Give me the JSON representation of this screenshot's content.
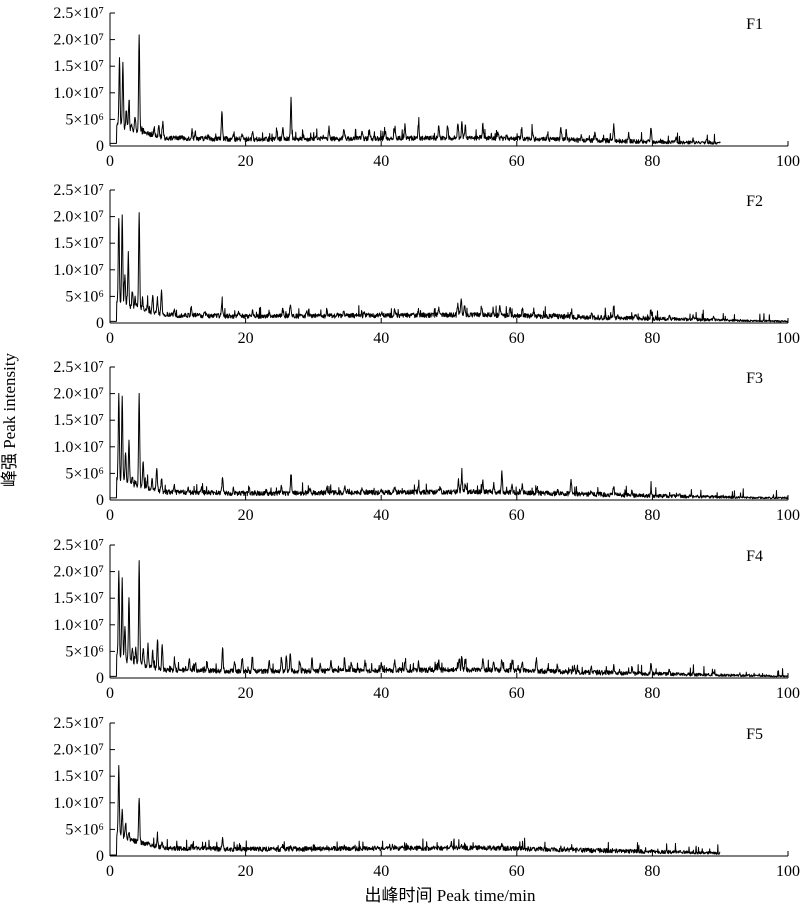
{
  "chart_data": {
    "type": "line",
    "xlabel": "出峰时间 Peak time/min",
    "ylabel": "峰强 Peak intensity",
    "xlim": [
      0,
      100
    ],
    "ylim": [
      0,
      25000000
    ],
    "x_ticks": [
      0,
      20,
      40,
      60,
      80,
      100
    ],
    "y_ticks": [
      {
        "value": 0,
        "label": "0"
      },
      {
        "value": 5000000,
        "label": "5×10⁶"
      },
      {
        "value": 10000000,
        "label": "1.0×10⁷"
      },
      {
        "value": 15000000,
        "label": "1.5×10⁷"
      },
      {
        "value": 20000000,
        "label": "2.0×10⁷"
      },
      {
        "value": 25000000,
        "label": "2.5×10⁷"
      }
    ],
    "panels": [
      {
        "name": "F1",
        "end": 90,
        "tail": 0.5,
        "peaks": [
          [
            1.4,
            16.5
          ],
          [
            1.9,
            15.8
          ],
          [
            2.4,
            7.0
          ],
          [
            2.8,
            8.5
          ],
          [
            3.2,
            4.0
          ],
          [
            3.7,
            5.5
          ],
          [
            4.3,
            21.0
          ],
          [
            4.9,
            3.0
          ],
          [
            5.6,
            2.5
          ],
          [
            6.5,
            3.6
          ],
          [
            7.2,
            4.3
          ],
          [
            7.8,
            4.6
          ],
          [
            9.5,
            1.8
          ],
          [
            10.5,
            1.8
          ],
          [
            12.1,
            3.1
          ],
          [
            12.6,
            2.6
          ],
          [
            14.5,
            1.9
          ],
          [
            16.5,
            6.7
          ],
          [
            18.2,
            2.0
          ],
          [
            19.5,
            2.2
          ],
          [
            21.0,
            2.6
          ],
          [
            23.0,
            2.0
          ],
          [
            24.6,
            2.8
          ],
          [
            25.5,
            3.6
          ],
          [
            26.7,
            9.0
          ],
          [
            28.5,
            2.0
          ],
          [
            30.5,
            1.8
          ],
          [
            32.3,
            3.7
          ],
          [
            34.5,
            3.2
          ],
          [
            37.2,
            2.8
          ],
          [
            38.3,
            2.6
          ],
          [
            40.6,
            2.8
          ],
          [
            42.0,
            3.4
          ],
          [
            43.5,
            3.8
          ],
          [
            45.5,
            4.2
          ],
          [
            48.5,
            3.8
          ],
          [
            49.8,
            4.0
          ],
          [
            51.3,
            4.0
          ],
          [
            51.9,
            4.4
          ],
          [
            52.4,
            3.8
          ],
          [
            55.0,
            4.2
          ],
          [
            57.2,
            2.6
          ],
          [
            58.5,
            2.1
          ],
          [
            60.7,
            3.5
          ],
          [
            62.3,
            2.8
          ],
          [
            64.5,
            2.2
          ],
          [
            66.5,
            3.3
          ],
          [
            67.3,
            3.0
          ],
          [
            69.5,
            2.2
          ],
          [
            71.5,
            2.4
          ],
          [
            74.3,
            3.9
          ],
          [
            76.5,
            2.1
          ],
          [
            79.8,
            3.6
          ],
          [
            83.5,
            1.6
          ],
          [
            86.0,
            1.3
          ],
          [
            88.0,
            1.1
          ]
        ]
      },
      {
        "name": "F2",
        "end": 100,
        "tail": 0.3,
        "peaks": [
          [
            1.3,
            20.0
          ],
          [
            1.8,
            20.2
          ],
          [
            2.2,
            9.0
          ],
          [
            2.7,
            13.0
          ],
          [
            3.3,
            6.0
          ],
          [
            3.7,
            5.0
          ],
          [
            4.3,
            20.6
          ],
          [
            4.8,
            4.5
          ],
          [
            5.5,
            3.5
          ],
          [
            6.3,
            5.0
          ],
          [
            7.0,
            4.5
          ],
          [
            7.6,
            5.8
          ],
          [
            9.5,
            2.5
          ],
          [
            12.0,
            3.0
          ],
          [
            14.0,
            2.0
          ],
          [
            16.5,
            4.1
          ],
          [
            19.0,
            2.0
          ],
          [
            21.0,
            2.2
          ],
          [
            23.5,
            2.2
          ],
          [
            25.5,
            2.6
          ],
          [
            26.6,
            3.6
          ],
          [
            29.0,
            2.0
          ],
          [
            32.0,
            2.6
          ],
          [
            34.5,
            2.4
          ],
          [
            37.5,
            2.3
          ],
          [
            40.0,
            2.0
          ],
          [
            42.0,
            2.6
          ],
          [
            45.5,
            2.4
          ],
          [
            48.5,
            2.6
          ],
          [
            51.3,
            3.6
          ],
          [
            51.8,
            4.4
          ],
          [
            52.3,
            3.4
          ],
          [
            54.8,
            3.1
          ],
          [
            56.5,
            2.6
          ],
          [
            57.5,
            3.0
          ],
          [
            59.0,
            2.8
          ],
          [
            60.8,
            2.7
          ],
          [
            62.5,
            2.4
          ],
          [
            65.5,
            1.8
          ],
          [
            68.0,
            1.7
          ],
          [
            71.0,
            1.8
          ],
          [
            74.3,
            3.2
          ],
          [
            77.5,
            1.7
          ],
          [
            79.8,
            2.2
          ],
          [
            82.5,
            1.6
          ],
          [
            86.0,
            1.4
          ],
          [
            89.0,
            1.2
          ]
        ]
      },
      {
        "name": "F3",
        "end": 100,
        "tail": 0.4,
        "peaks": [
          [
            1.3,
            20.0
          ],
          [
            1.8,
            19.7
          ],
          [
            2.3,
            9.0
          ],
          [
            2.8,
            11.2
          ],
          [
            3.3,
            4.5
          ],
          [
            3.8,
            3.5
          ],
          [
            4.3,
            19.8
          ],
          [
            4.9,
            7.5
          ],
          [
            5.5,
            3.5
          ],
          [
            6.2,
            4.0
          ],
          [
            6.9,
            6.2
          ],
          [
            7.6,
            4.0
          ],
          [
            9.5,
            2.5
          ],
          [
            11.5,
            2.5
          ],
          [
            13.5,
            2.2
          ],
          [
            16.6,
            4.6
          ],
          [
            18.2,
            2.0
          ],
          [
            20.5,
            2.5
          ],
          [
            23.0,
            2.0
          ],
          [
            25.3,
            2.6
          ],
          [
            26.7,
            5.0
          ],
          [
            29.5,
            2.2
          ],
          [
            32.0,
            2.8
          ],
          [
            34.6,
            2.6
          ],
          [
            37.2,
            2.4
          ],
          [
            40.0,
            2.2
          ],
          [
            42.0,
            2.4
          ],
          [
            45.5,
            2.3
          ],
          [
            48.7,
            2.3
          ],
          [
            51.4,
            3.6
          ],
          [
            51.9,
            4.6
          ],
          [
            52.4,
            3.0
          ],
          [
            55.0,
            3.4
          ],
          [
            56.6,
            3.0
          ],
          [
            57.8,
            5.1
          ],
          [
            59.3,
            2.9
          ],
          [
            60.8,
            2.8
          ],
          [
            63.0,
            2.4
          ],
          [
            66.0,
            2.0
          ],
          [
            68.0,
            3.6
          ],
          [
            71.0,
            1.8
          ],
          [
            74.3,
            2.8
          ],
          [
            77.0,
            1.7
          ],
          [
            79.8,
            2.0
          ],
          [
            84.0,
            1.0
          ],
          [
            88.0,
            0.8
          ]
        ]
      },
      {
        "name": "F4",
        "end": 100,
        "tail": 0.3,
        "peaks": [
          [
            1.3,
            20.0
          ],
          [
            1.8,
            18.0
          ],
          [
            2.2,
            10.0
          ],
          [
            2.8,
            15.5
          ],
          [
            3.3,
            6.0
          ],
          [
            3.8,
            5.5
          ],
          [
            4.3,
            21.5
          ],
          [
            4.9,
            5.6
          ],
          [
            5.6,
            5.8
          ],
          [
            6.3,
            5.0
          ],
          [
            7.0,
            7.5
          ],
          [
            7.7,
            6.5
          ],
          [
            9.5,
            3.0
          ],
          [
            11.7,
            3.8
          ],
          [
            12.6,
            3.0
          ],
          [
            14.3,
            3.0
          ],
          [
            16.6,
            5.8
          ],
          [
            18.4,
            3.2
          ],
          [
            19.5,
            3.8
          ],
          [
            21.0,
            4.0
          ],
          [
            23.5,
            3.0
          ],
          [
            25.3,
            4.0
          ],
          [
            26.0,
            4.0
          ],
          [
            26.6,
            4.6
          ],
          [
            28.0,
            3.0
          ],
          [
            29.8,
            3.6
          ],
          [
            31.0,
            3.0
          ],
          [
            32.6,
            3.2
          ],
          [
            34.6,
            3.8
          ],
          [
            35.6,
            3.0
          ],
          [
            37.6,
            3.0
          ],
          [
            40.0,
            2.6
          ],
          [
            42.0,
            3.3
          ],
          [
            43.5,
            3.0
          ],
          [
            45.5,
            2.8
          ],
          [
            48.5,
            3.0
          ],
          [
            51.5,
            3.6
          ],
          [
            51.9,
            4.3
          ],
          [
            52.4,
            3.5
          ],
          [
            55.0,
            3.4
          ],
          [
            56.6,
            3.0
          ],
          [
            57.8,
            3.6
          ],
          [
            59.3,
            3.0
          ],
          [
            60.8,
            3.0
          ],
          [
            62.9,
            3.8
          ],
          [
            66.0,
            2.4
          ],
          [
            68.5,
            2.2
          ],
          [
            71.0,
            2.0
          ],
          [
            74.3,
            2.2
          ],
          [
            77.0,
            2.0
          ],
          [
            79.8,
            3.0
          ],
          [
            82.5,
            1.6
          ],
          [
            86.0,
            1.2
          ],
          [
            89.0,
            1.0
          ]
        ]
      },
      {
        "name": "F5",
        "end": 90,
        "tail": 0.2,
        "peaks": [
          [
            1.3,
            16.8
          ],
          [
            1.8,
            9.0
          ],
          [
            2.3,
            6.5
          ],
          [
            2.8,
            4.5
          ],
          [
            3.3,
            2.5
          ],
          [
            3.8,
            2.0
          ],
          [
            4.3,
            11.2
          ],
          [
            4.9,
            2.5
          ],
          [
            5.6,
            2.0
          ],
          [
            6.3,
            2.2
          ],
          [
            7.0,
            3.5
          ],
          [
            7.7,
            2.5
          ],
          [
            9.5,
            1.5
          ],
          [
            12.0,
            2.0
          ],
          [
            14.0,
            1.5
          ],
          [
            16.6,
            3.1
          ],
          [
            18.5,
            1.5
          ],
          [
            21.0,
            1.6
          ],
          [
            23.5,
            1.5
          ],
          [
            25.5,
            1.8
          ],
          [
            26.6,
            2.0
          ],
          [
            29.5,
            1.4
          ],
          [
            32.0,
            1.6
          ],
          [
            34.6,
            1.8
          ],
          [
            37.5,
            1.5
          ],
          [
            40.0,
            1.4
          ],
          [
            42.0,
            1.7
          ],
          [
            45.5,
            1.5
          ],
          [
            48.5,
            1.6
          ],
          [
            51.8,
            1.9
          ],
          [
            55.0,
            1.6
          ],
          [
            57.8,
            2.0
          ],
          [
            60.5,
            1.5
          ],
          [
            63.0,
            1.5
          ],
          [
            66.0,
            1.2
          ],
          [
            71.0,
            1.0
          ],
          [
            74.3,
            1.3
          ],
          [
            79.8,
            1.0
          ],
          [
            84.0,
            0.6
          ],
          [
            87.0,
            0.5
          ]
        ]
      }
    ]
  }
}
